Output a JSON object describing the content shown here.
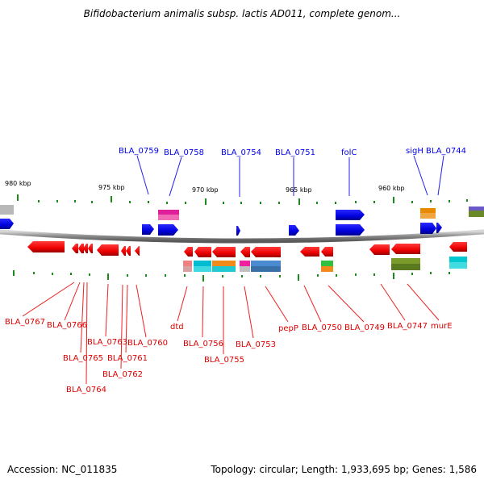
{
  "title": "Bifidobacterium animalis subsp. lactis AD011, complete genom...",
  "footer": {
    "accession": "Accession: NC_011835",
    "topology": "Topology: circular; Length: 1,933,695 bp; Genes: 1,586"
  },
  "colors": {
    "forward_strand": "#0000ee",
    "reverse_strand": "#ee0000",
    "backbone": "#8a8a8a",
    "tick": "#1a8a1a"
  },
  "scale_labels": [
    {
      "id": "kbp-980",
      "text": "980 kbp"
    },
    {
      "id": "kbp-975",
      "text": "975 kbp"
    },
    {
      "id": "kbp-970",
      "text": "970 kbp"
    },
    {
      "id": "kbp-965",
      "text": "965 kbp"
    },
    {
      "id": "kbp-960",
      "text": "960 kbp"
    }
  ],
  "forward_labels": [
    "BLA_0759",
    "BLA_0758",
    "BLA_0754",
    "BLA_0751",
    "folC",
    "sigH",
    "BLA_0744"
  ],
  "reverse_labels": [
    "BLA_0767",
    "BLA_0766",
    "BLA_0765",
    "BLA_0764",
    "BLA_0763",
    "BLA_0762",
    "BLA_0761",
    "BLA_0760",
    "dtd",
    "BLA_0756",
    "BLA_0755",
    "BLA_0753",
    "pepP",
    "BLA_0750",
    "BLA_0749",
    "BLA_0747",
    "murE"
  ]
}
